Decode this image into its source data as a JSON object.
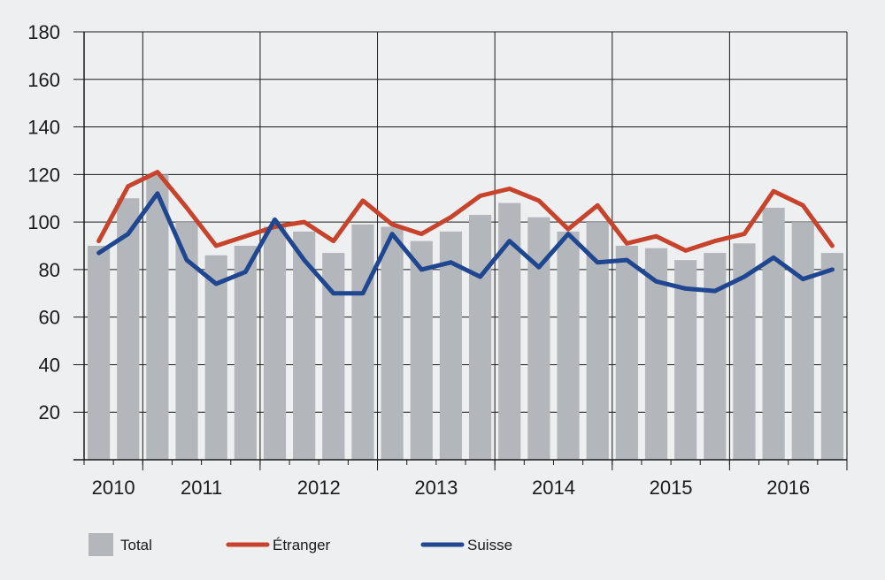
{
  "chart_data": {
    "type": "bar",
    "title": "",
    "xlabel": "",
    "ylabel": "",
    "ylim": [
      0,
      180
    ],
    "yticks": [
      20,
      40,
      60,
      80,
      100,
      120,
      140,
      160,
      180
    ],
    "grid": true,
    "legend_position": "bottom",
    "year_labels": [
      "2010",
      "2011",
      "2012",
      "2013",
      "2014",
      "2015",
      "2016"
    ],
    "quarters_per_year": [
      2,
      4,
      4,
      4,
      4,
      4,
      4
    ],
    "series": [
      {
        "name": "Total",
        "kind": "bar",
        "color": "#b3b6ba",
        "values": [
          90,
          110,
          120,
          100,
          86,
          90,
          98,
          96,
          87,
          99,
          98,
          92,
          96,
          103,
          108,
          102,
          96,
          100,
          90,
          89,
          84,
          87,
          91,
          106,
          100,
          87
        ]
      },
      {
        "name": "Étranger",
        "kind": "line",
        "color": "#c8432b",
        "values": [
          92,
          115,
          121,
          106,
          90,
          94,
          98,
          100,
          92,
          109,
          99,
          95,
          102,
          111,
          114,
          109,
          97,
          107,
          91,
          94,
          88,
          92,
          95,
          113,
          107,
          90
        ]
      },
      {
        "name": "Suisse",
        "kind": "line",
        "color": "#1f4690",
        "values": [
          87,
          95,
          112,
          84,
          74,
          79,
          101,
          84,
          70,
          70,
          95,
          80,
          83,
          77,
          92,
          81,
          95,
          83,
          84,
          75,
          72,
          71,
          77,
          85,
          76,
          80
        ]
      }
    ]
  }
}
